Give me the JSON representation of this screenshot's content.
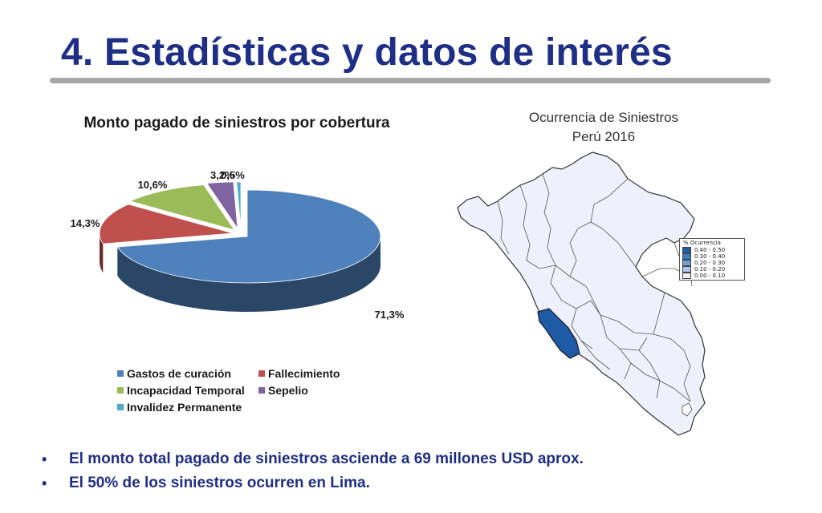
{
  "slide": {
    "title": "4. Estadísticas y datos de interés",
    "bullets": [
      {
        "marker": "•",
        "text": "El monto total pagado de siniestros asciende a 69 millones USD aprox."
      },
      {
        "marker": "•",
        "text": "El 50% de los siniestros ocurren en Lima."
      }
    ]
  },
  "chart_data": [
    {
      "type": "pie",
      "title": "Monto pagado de siniestros por cobertura",
      "legend_position": "bottom",
      "slices": [
        {
          "label": "Gastos de curación",
          "value": 71.3,
          "display": "71,3%",
          "color": "#4f81bd"
        },
        {
          "label": "Fallecimiento",
          "value": 14.3,
          "display": "14,3%",
          "color": "#c0504d"
        },
        {
          "label": "Incapacidad Temporal",
          "value": 10.6,
          "display": "10,6%",
          "color": "#9bbb59"
        },
        {
          "label": "Sepelio",
          "value": 3.2,
          "display": "3,2%",
          "color": "#8064a2"
        },
        {
          "label": "Invalidez Permanente",
          "value": 0.5,
          "display": "0,5%",
          "color": "#4bacc6"
        }
      ]
    }
  ],
  "map": {
    "title_line1": "Ocurrencia de Siniestros",
    "title_line2": "Perú 2016",
    "legend": {
      "header": "% Ocurrencia",
      "classes": [
        {
          "label": "0.40 - 0.50",
          "color": "#1f5aa6"
        },
        {
          "label": "0.30 - 0.40",
          "color": "#3c7cc4"
        },
        {
          "label": "0.20 - 0.30",
          "color": "#6fa0d8"
        },
        {
          "label": "0.10 - 0.20",
          "color": "#aec8ea"
        },
        {
          "label": "0.00 - 0.10",
          "color": "#eef0fb"
        }
      ]
    },
    "highlighted_region_color": "#1f5aa6",
    "base_region_color": "#eef0fb"
  }
}
